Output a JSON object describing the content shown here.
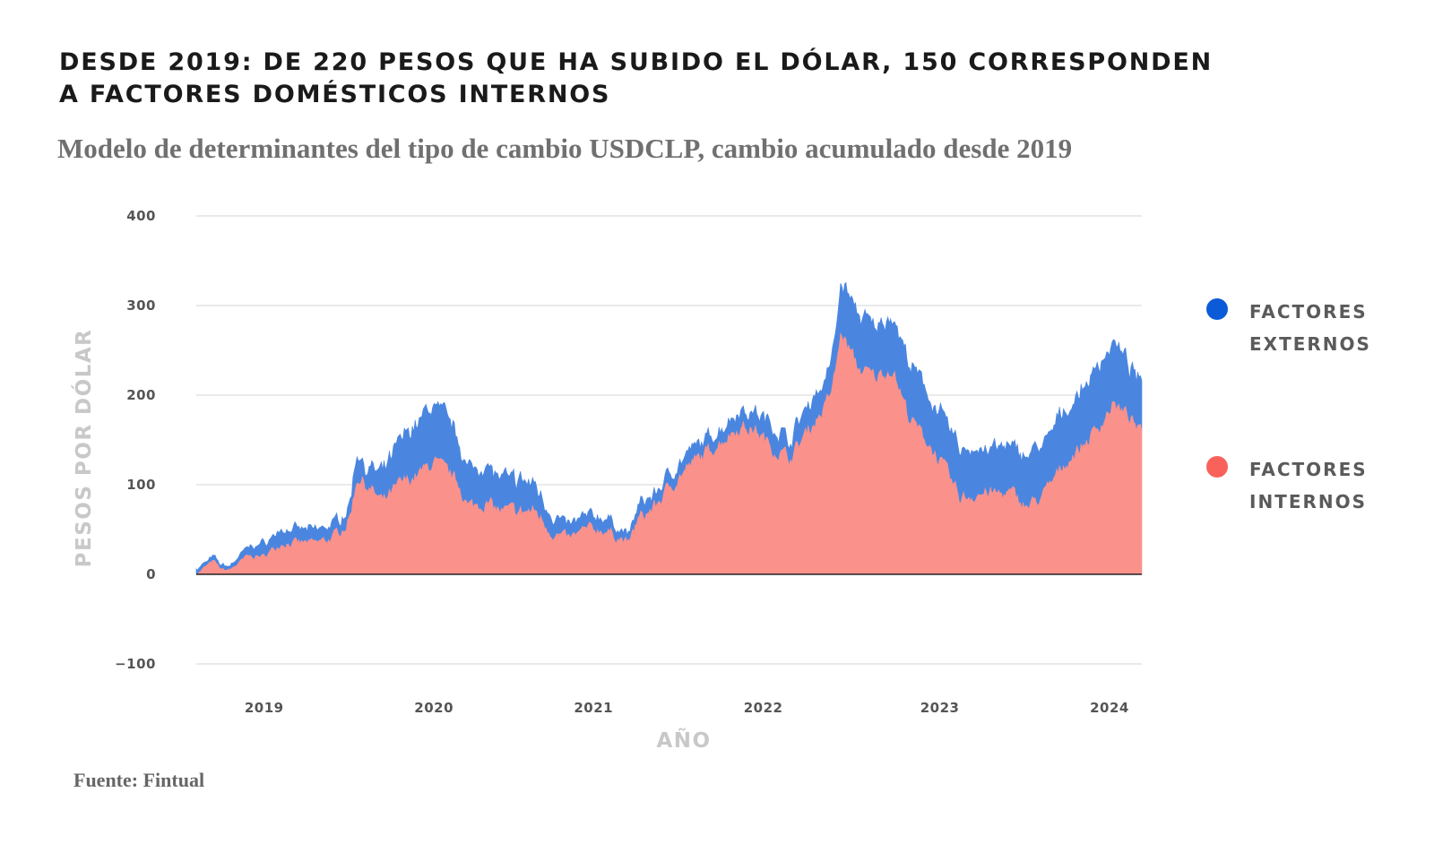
{
  "title": "DESDE 2019: DE 220 PESOS QUE HA SUBIDO EL DÓLAR, 150 CORRESPONDEN A FACTORES DOMÉSTICOS INTERNOS",
  "subtitle": "Modelo de determinantes del tipo de cambio USDCLP, cambio acumulado desde 2019",
  "source": "Fuente: Fintual",
  "legend": [
    {
      "line1": "FACTORES",
      "line2": "EXTERNOS",
      "color": "#0b5bd8"
    },
    {
      "line1": "FACTORES",
      "line2": "INTERNOS",
      "color": "#f9625a"
    }
  ],
  "chart_data": {
    "type": "area",
    "stacked": true,
    "xlabel": "AÑO",
    "ylabel": "PESOS POR DÓLAR",
    "ylim": [
      -100,
      400
    ],
    "yticks": [
      400,
      300,
      200,
      100,
      0,
      -100
    ],
    "xlim": [
      2018.6,
      2024.17
    ],
    "xticks": [
      {
        "label": "2019",
        "x": 2019.0
      },
      {
        "label": "2020",
        "x": 2020.0
      },
      {
        "label": "2021",
        "x": 2020.94
      },
      {
        "label": "2022",
        "x": 2021.94
      },
      {
        "label": "2023",
        "x": 2022.98
      },
      {
        "label": "2024",
        "x": 2023.98
      }
    ],
    "grid": true,
    "legend_position": "right",
    "x": [
      2018.6,
      2018.7,
      2018.75,
      2018.8,
      2018.9,
      2019.0,
      2019.1,
      2019.2,
      2019.3,
      2019.4,
      2019.5,
      2019.55,
      2019.6,
      2019.7,
      2019.8,
      2019.9,
      2020.0,
      2020.1,
      2020.15,
      2020.2,
      2020.3,
      2020.4,
      2020.5,
      2020.6,
      2020.7,
      2020.8,
      2020.9,
      2021.0,
      2021.1,
      2021.15,
      2021.2,
      2021.3,
      2021.4,
      2021.5,
      2021.6,
      2021.7,
      2021.8,
      2021.9,
      2022.0,
      2022.1,
      2022.2,
      2022.3,
      2022.35,
      2022.4,
      2022.5,
      2022.6,
      2022.7,
      2022.8,
      2022.9,
      2023.0,
      2023.1,
      2023.2,
      2023.3,
      2023.4,
      2023.5,
      2023.6,
      2023.7,
      2023.8,
      2023.9,
      2024.0,
      2024.1,
      2024.17
    ],
    "series": [
      {
        "name": "FACTORES INTERNOS",
        "color": "#f9625a",
        "values": [
          0,
          15,
          5,
          5,
          20,
          20,
          35,
          35,
          35,
          40,
          60,
          110,
          100,
          80,
          100,
          110,
          125,
          110,
          100,
          75,
          80,
          70,
          70,
          70,
          45,
          40,
          50,
          50,
          40,
          35,
          60,
          75,
          100,
          120,
          135,
          150,
          165,
          160,
          140,
          130,
          160,
          185,
          210,
          270,
          230,
          220,
          230,
          175,
          150,
          120,
          85,
          90,
          90,
          90,
          75,
          90,
          120,
          140,
          160,
          190,
          175,
          155
        ]
      },
      {
        "name": "FACTORES EXTERNOS",
        "color": "#0b5bd8",
        "values": [
          5,
          5,
          5,
          5,
          10,
          15,
          15,
          15,
          15,
          15,
          15,
          30,
          20,
          30,
          50,
          60,
          65,
          60,
          50,
          40,
          45,
          35,
          35,
          30,
          20,
          15,
          15,
          15,
          10,
          10,
          15,
          15,
          15,
          15,
          15,
          15,
          20,
          20,
          25,
          20,
          30,
          30,
          35,
          60,
          60,
          55,
          60,
          60,
          55,
          55,
          55,
          50,
          50,
          50,
          60,
          55,
          60,
          60,
          70,
          70,
          55,
          55
        ]
      }
    ]
  }
}
